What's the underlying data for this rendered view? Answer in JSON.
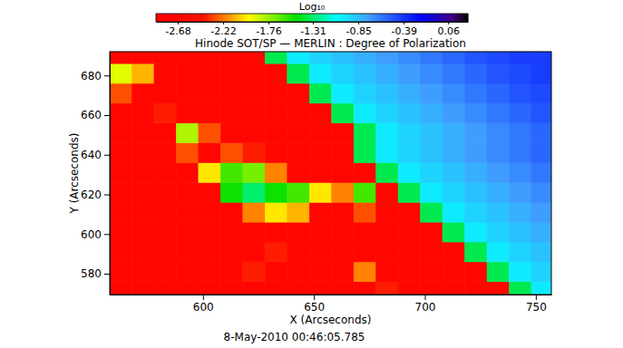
{
  "chart_data": {
    "type": "heatmap",
    "title": "Hinode SOT/SP — MERLIN : Degree of Polarization",
    "subtitle": "8-May-2010 00:46:05.785",
    "x_label": "X (Arcseconds)",
    "y_label": "Y (Arcseconds)",
    "xlim": [
      558,
      757
    ],
    "ylim": [
      569.5,
      692
    ],
    "xticks": [
      600,
      650,
      700,
      750
    ],
    "yticks": [
      580,
      600,
      620,
      640,
      660,
      680
    ],
    "x_edges": [
      558,
      568,
      578,
      588,
      598,
      608,
      618,
      628,
      638,
      648,
      658,
      668,
      678,
      688,
      698,
      708,
      718,
      728,
      738,
      748,
      758
    ],
    "y_edges": [
      566,
      576,
      586,
      596,
      606,
      616,
      626,
      636,
      646,
      656,
      666,
      676,
      686,
      696
    ],
    "cells": [
      [
        -2.7,
        -2.7,
        -2.7,
        -2.7,
        -2.7,
        -2.7,
        -2.7,
        -2.7,
        -2.7,
        -2.7,
        -2.7,
        -2.7,
        -2.4,
        -2.7,
        -2.7,
        -2.7,
        -2.7,
        -2.7,
        -1.35,
        -1.0
      ],
      [
        -2.7,
        -2.7,
        -2.7,
        -2.7,
        -2.7,
        -2.7,
        -2.4,
        -2.7,
        -2.7,
        -2.7,
        -2.7,
        -2.2,
        -2.7,
        -2.7,
        -2.7,
        -2.7,
        -2.7,
        -1.35,
        -1.0,
        -0.92
      ],
      [
        -2.7,
        -2.7,
        -2.7,
        -2.7,
        -2.7,
        -2.7,
        -2.7,
        -2.4,
        -2.7,
        -2.7,
        -2.7,
        -2.7,
        -2.7,
        -2.7,
        -2.7,
        -2.7,
        -1.35,
        -1.0,
        -0.92,
        -0.86
      ],
      [
        -2.7,
        -2.7,
        -2.7,
        -2.7,
        -2.7,
        -2.7,
        -2.7,
        -2.7,
        -2.7,
        -2.7,
        -2.7,
        -2.7,
        -2.7,
        -2.7,
        -2.7,
        -1.35,
        -1.0,
        -0.92,
        -0.86,
        -0.8
      ],
      [
        -2.7,
        -2.7,
        -2.7,
        -2.7,
        -2.7,
        -2.7,
        -2.2,
        -2.0,
        -2.1,
        -2.7,
        -2.7,
        -2.3,
        -2.7,
        -2.7,
        -1.35,
        -1.0,
        -0.92,
        -0.86,
        -0.8,
        -0.74
      ],
      [
        -2.7,
        -2.7,
        -2.7,
        -2.7,
        -2.7,
        -1.5,
        -1.3,
        -1.5,
        -1.6,
        -2.0,
        -2.2,
        -1.6,
        -2.7,
        -1.35,
        -1.0,
        -0.92,
        -0.86,
        -0.8,
        -0.74,
        -0.68
      ],
      [
        -2.7,
        -2.7,
        -2.7,
        -2.7,
        -2.0,
        -1.6,
        -1.7,
        -2.2,
        -2.7,
        -2.7,
        -2.7,
        -2.7,
        -1.35,
        -1.0,
        -0.92,
        -0.86,
        -0.8,
        -0.74,
        -0.68,
        -0.62
      ],
      [
        -2.7,
        -2.7,
        -2.7,
        -2.3,
        -2.7,
        -2.3,
        -2.4,
        -2.7,
        -2.7,
        -2.7,
        -2.7,
        -1.35,
        -1.0,
        -0.92,
        -0.86,
        -0.8,
        -0.74,
        -0.68,
        -0.62,
        -0.56
      ],
      [
        -2.7,
        -2.7,
        -2.7,
        -1.8,
        -2.3,
        -2.7,
        -2.7,
        -2.7,
        -2.7,
        -2.7,
        -2.7,
        -1.35,
        -1.0,
        -0.92,
        -0.86,
        -0.8,
        -0.74,
        -0.68,
        -0.62,
        -0.56
      ],
      [
        -2.7,
        -2.7,
        -2.4,
        -2.7,
        -2.7,
        -2.7,
        -2.7,
        -2.7,
        -2.7,
        -2.7,
        -1.35,
        -1.0,
        -0.92,
        -0.86,
        -0.8,
        -0.74,
        -0.68,
        -0.62,
        -0.56,
        -0.5
      ],
      [
        -2.3,
        -2.7,
        -2.7,
        -2.7,
        -2.7,
        -2.7,
        -2.7,
        -2.7,
        -2.7,
        -1.35,
        -1.0,
        -0.92,
        -0.86,
        -0.8,
        -0.74,
        -0.68,
        -0.62,
        -0.56,
        -0.5,
        -0.46
      ],
      [
        -1.9,
        -2.1,
        -2.7,
        -2.7,
        -2.7,
        -2.7,
        -2.7,
        -2.7,
        -1.35,
        -1.0,
        -0.92,
        -0.86,
        -0.8,
        -0.74,
        -0.68,
        -0.62,
        -0.56,
        -0.5,
        -0.46,
        -0.42
      ],
      [
        -2.7,
        -2.7,
        -2.7,
        -2.7,
        -2.7,
        -2.7,
        -2.7,
        -1.35,
        -1.0,
        -0.92,
        -0.86,
        -0.8,
        -0.74,
        -0.68,
        -0.62,
        -0.56,
        -0.5,
        -0.46,
        -0.42,
        -0.42
      ]
    ],
    "colorbar_title": "Log₁₀",
    "colorbar_range": [
      -2.9,
      0.26
    ],
    "colorbar_ticks": [
      -2.68,
      -2.22,
      -1.76,
      -1.31,
      -0.85,
      -0.39,
      0.06
    ]
  }
}
